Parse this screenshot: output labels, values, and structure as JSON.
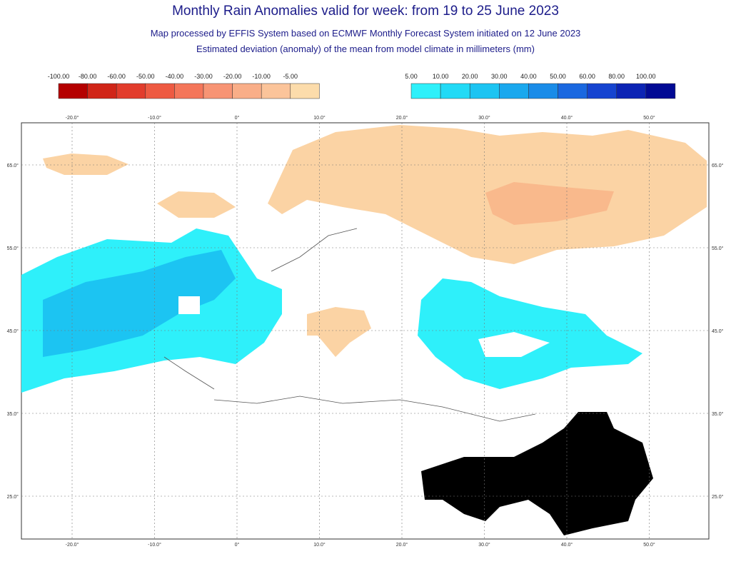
{
  "header": {
    "title": "Monthly Rain Anomalies valid for week: from 19 to 25 June 2023",
    "subtitle_lines": [
      "Map processed by EFFIS System based on ECMWF Monthly Forecast System initiated on 12 June 2023",
      "Estimated deviation (anomaly) of the mean from model climate in millimeters (mm)"
    ]
  },
  "legend": {
    "negative": {
      "labels": [
        "-100.00",
        "-80.00",
        "-60.00",
        "-50.00",
        "-40.00",
        "-30.00",
        "-20.00",
        "-10.00",
        "-5.00"
      ],
      "colors": [
        "#b40000",
        "#d02518",
        "#e23c2c",
        "#ee5a42",
        "#f4765a",
        "#f79474",
        "#f9ae88",
        "#fbc49a",
        "#fcdcab"
      ]
    },
    "positive": {
      "labels": [
        "5.00",
        "10.00",
        "20.00",
        "30.00",
        "40.00",
        "50.00",
        "60.00",
        "80.00",
        "100.00"
      ],
      "colors": [
        "#2ef0fa",
        "#22daf6",
        "#1cc4f2",
        "#1aa8ee",
        "#1a8ce8",
        "#1a68e0",
        "#1644d0",
        "#0c24b4",
        "#020a94"
      ]
    }
  },
  "axes": {
    "lon_ticks": [
      {
        "value": -20,
        "label": "-20.0°"
      },
      {
        "value": -10,
        "label": "-10.0°"
      },
      {
        "value": 0,
        "label": "0°"
      },
      {
        "value": 10,
        "label": "10.0°"
      },
      {
        "value": 20,
        "label": "20.0°"
      },
      {
        "value": 30,
        "label": "30.0°"
      },
      {
        "value": 40,
        "label": "40.0°"
      },
      {
        "value": 50,
        "label": "50.0°"
      }
    ],
    "lat_ticks": [
      {
        "value": 65,
        "label": "65.0°"
      },
      {
        "value": 55,
        "label": "55.0°"
      },
      {
        "value": 45,
        "label": "45.0°"
      },
      {
        "value": 35,
        "label": "35.0°"
      },
      {
        "value": 25,
        "label": "25.0°"
      }
    ]
  }
}
